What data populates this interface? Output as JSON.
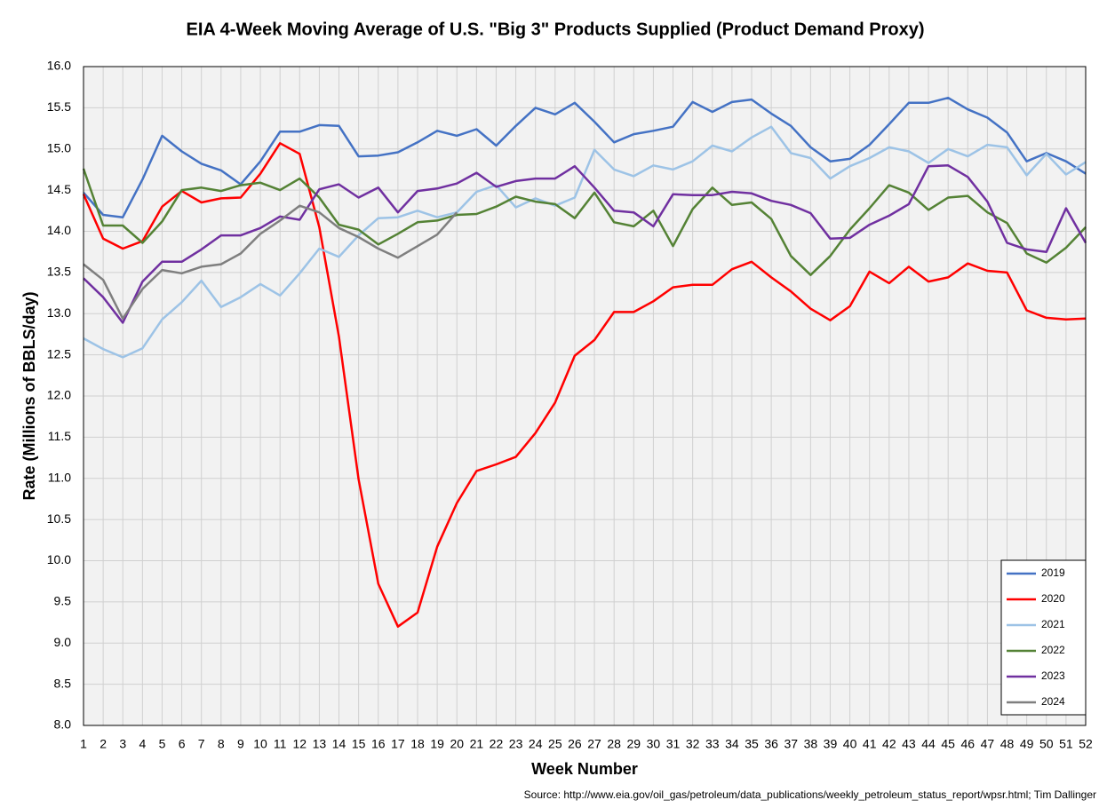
{
  "chart_data": {
    "type": "line",
    "title": "EIA 4-Week Moving Average of U.S. \"Big 3\" Products Supplied (Product Demand Proxy)",
    "x_label": "Week Number",
    "y_label": "Rate (Millions of BBLS/day)",
    "source": "Source: http://www.eia.gov/oil_gas/petroleum/data_publications/weekly_petroleum_status_report/wpsr.html; Tim Dallinger",
    "x": [
      1,
      2,
      3,
      4,
      5,
      6,
      7,
      8,
      9,
      10,
      11,
      12,
      13,
      14,
      15,
      16,
      17,
      18,
      19,
      20,
      21,
      22,
      23,
      24,
      25,
      26,
      27,
      28,
      29,
      30,
      31,
      32,
      33,
      34,
      35,
      36,
      37,
      38,
      39,
      40,
      41,
      42,
      43,
      44,
      45,
      46,
      47,
      48,
      49,
      50,
      51,
      52
    ],
    "xlim": [
      1,
      52
    ],
    "xticks": [
      1,
      2,
      3,
      4,
      5,
      6,
      7,
      8,
      9,
      10,
      11,
      12,
      13,
      14,
      15,
      16,
      17,
      18,
      19,
      20,
      21,
      22,
      23,
      24,
      25,
      26,
      27,
      28,
      29,
      30,
      31,
      32,
      33,
      34,
      35,
      36,
      37,
      38,
      39,
      40,
      41,
      42,
      43,
      44,
      45,
      46,
      47,
      48,
      49,
      50,
      51,
      52
    ],
    "ylim": [
      8,
      16
    ],
    "yticks": [
      {
        "value": 8,
        "label": "8.0"
      },
      8.5,
      {
        "value": 9,
        "label": "9.0"
      },
      9.5,
      {
        "value": 10,
        "label": "10.0"
      },
      10.5,
      {
        "value": 11,
        "label": "11.0"
      },
      11.5,
      {
        "value": 12,
        "label": "12.0"
      },
      12.5,
      {
        "value": 13,
        "label": "13.0"
      },
      13.5,
      {
        "value": 14,
        "label": "14.0"
      },
      14.5,
      {
        "value": 15,
        "label": "15.0"
      },
      15.5,
      {
        "value": 16,
        "label": "16.0"
      }
    ],
    "grid": true,
    "legend": "lower right",
    "series": [
      {
        "name": "2019",
        "color": "#4472c4",
        "values": [
          14.47,
          14.2,
          14.17,
          14.63,
          15.16,
          14.97,
          14.82,
          14.74,
          14.57,
          14.85,
          15.21,
          15.21,
          15.29,
          15.28,
          14.91,
          14.92,
          14.96,
          15.08,
          15.22,
          15.16,
          15.24,
          15.04,
          15.28,
          15.5,
          15.42,
          15.56,
          15.33,
          15.08,
          15.18,
          15.22,
          15.27,
          15.57,
          15.45,
          15.57,
          15.6,
          15.43,
          15.28,
          15.02,
          14.85,
          14.88,
          15.05,
          15.3,
          15.56,
          15.56,
          15.62,
          15.48,
          15.38,
          15.2,
          14.85,
          14.95,
          14.85,
          14.7
        ]
      },
      {
        "name": "2020",
        "color": "#ff0000",
        "values": [
          14.45,
          13.91,
          13.79,
          13.88,
          14.3,
          14.49,
          14.35,
          14.4,
          14.41,
          14.7,
          15.07,
          14.94,
          14.05,
          12.72,
          10.99,
          9.72,
          9.2,
          9.37,
          10.17,
          10.7,
          11.09,
          11.17,
          11.26,
          11.55,
          11.92,
          12.49,
          12.68,
          13.02,
          13.02,
          13.15,
          13.32,
          13.35,
          13.35,
          13.54,
          13.63,
          13.44,
          13.27,
          13.06,
          12.92,
          13.09,
          13.51,
          13.37,
          13.57,
          13.39,
          13.44,
          13.61,
          13.52,
          13.5,
          13.04,
          12.95,
          12.93,
          12.94
        ]
      },
      {
        "name": "2021",
        "color": "#9dc3e6",
        "values": [
          12.7,
          12.57,
          12.47,
          12.58,
          12.93,
          13.14,
          13.4,
          13.08,
          13.2,
          13.36,
          13.22,
          13.49,
          13.79,
          13.69,
          13.95,
          14.16,
          14.17,
          14.25,
          14.17,
          14.23,
          14.48,
          14.56,
          14.29,
          14.4,
          14.31,
          14.41,
          14.99,
          14.75,
          14.67,
          14.8,
          14.75,
          14.85,
          15.04,
          14.97,
          15.14,
          15.27,
          14.95,
          14.89,
          14.64,
          14.79,
          14.89,
          15.02,
          14.97,
          14.83,
          15.0,
          14.91,
          15.05,
          15.02,
          14.68,
          14.94,
          14.69,
          14.84
        ]
      },
      {
        "name": "2022",
        "color": "#548235",
        "values": [
          14.76,
          14.07,
          14.07,
          13.86,
          14.12,
          14.5,
          14.53,
          14.49,
          14.56,
          14.59,
          14.5,
          14.64,
          14.41,
          14.08,
          14.02,
          13.84,
          13.97,
          14.11,
          14.13,
          14.2,
          14.21,
          14.3,
          14.42,
          14.36,
          14.33,
          14.16,
          14.47,
          14.11,
          14.06,
          14.25,
          13.82,
          14.27,
          14.53,
          14.32,
          14.35,
          14.15,
          13.7,
          13.47,
          13.7,
          14.02,
          14.28,
          14.56,
          14.47,
          14.26,
          14.41,
          14.43,
          14.23,
          14.1,
          13.73,
          13.62,
          13.8,
          14.05
        ]
      },
      {
        "name": "2023",
        "color": "#7030a0",
        "values": [
          13.43,
          13.2,
          12.89,
          13.39,
          13.63,
          13.63,
          13.78,
          13.95,
          13.95,
          14.04,
          14.18,
          14.14,
          14.51,
          14.57,
          14.41,
          14.53,
          14.23,
          14.49,
          14.52,
          14.58,
          14.71,
          14.54,
          14.61,
          14.64,
          14.64,
          14.79,
          14.53,
          14.25,
          14.23,
          14.06,
          14.45,
          14.44,
          14.44,
          14.48,
          14.46,
          14.37,
          14.32,
          14.22,
          13.91,
          13.92,
          14.08,
          14.19,
          14.33,
          14.79,
          14.8,
          14.66,
          14.36,
          13.86,
          13.78,
          13.75,
          14.28,
          13.86
        ]
      },
      {
        "name": "2024",
        "color": "#7f7f7f",
        "values": [
          13.6,
          13.41,
          12.94,
          13.3,
          13.53,
          13.49,
          13.57,
          13.6,
          13.73,
          13.97,
          14.13,
          14.31,
          14.23,
          14.04,
          13.93,
          13.79,
          13.68,
          13.82,
          13.96,
          14.23,
          null,
          null,
          null,
          null,
          null,
          null,
          null,
          null,
          null,
          null,
          null,
          null,
          null,
          null,
          null,
          null,
          null,
          null,
          null,
          null,
          null,
          null,
          null,
          null,
          null,
          null,
          null,
          null,
          null,
          null,
          null,
          null
        ]
      }
    ]
  }
}
